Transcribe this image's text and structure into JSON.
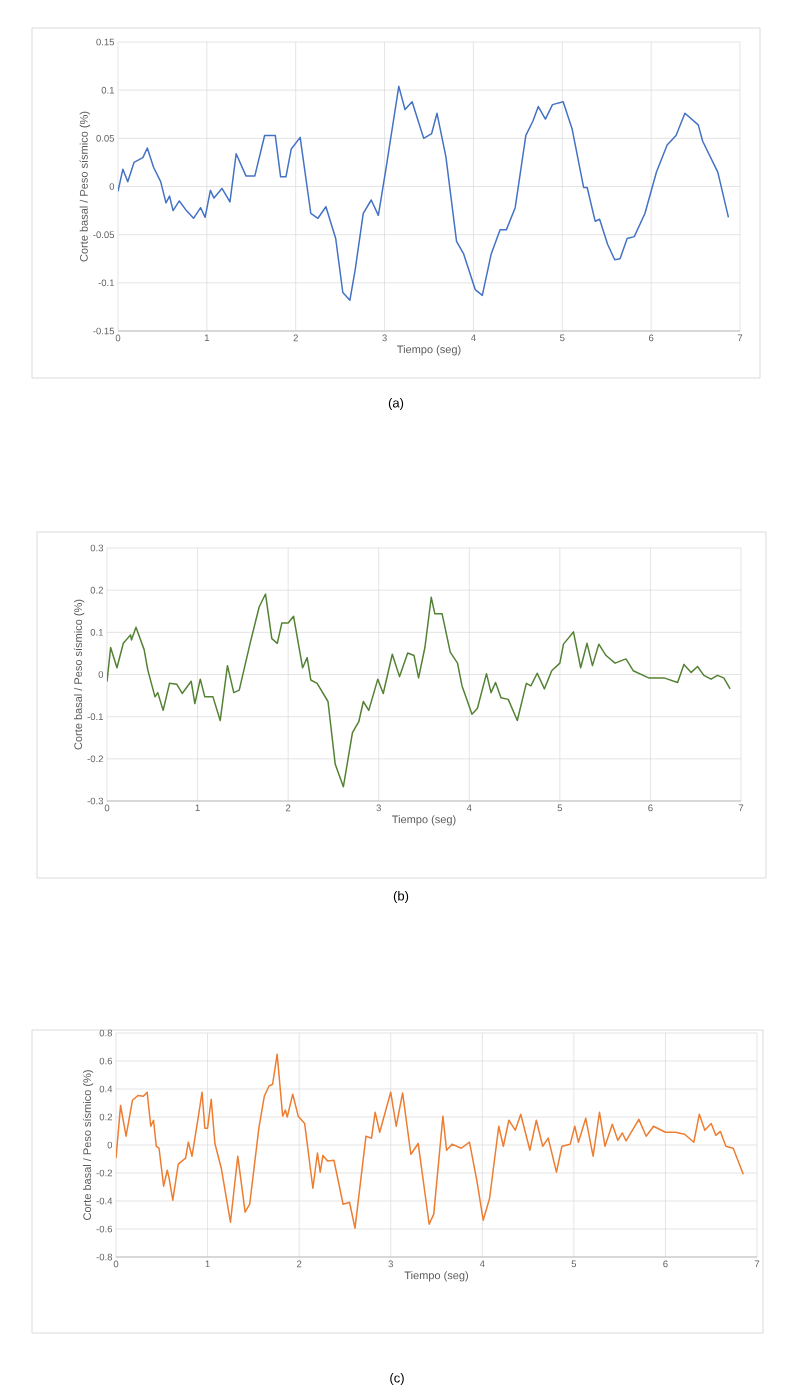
{
  "chart_data": [
    {
      "type": "line",
      "xlabel": "Tiempo (seg)",
      "ylabel": "Corte basal / Peso sísmico (%)",
      "annotations": [
        "(a)"
      ],
      "xlim": [
        0,
        7
      ],
      "ylim": [
        -0.15,
        0.15
      ],
      "xticks": [
        0,
        1,
        2,
        3,
        4,
        5,
        6,
        7
      ],
      "yticks": [
        -0.15,
        -0.1,
        -0.05,
        0,
        0.05,
        0.1,
        0.15
      ],
      "grid": true,
      "x": [
        0,
        0.055,
        0.11,
        0.18,
        0.28,
        0.33,
        0.4,
        0.48,
        0.54,
        0.58,
        0.62,
        0.69,
        0.77,
        0.85,
        0.93,
        0.98,
        1.04,
        1.08,
        1.17,
        1.26,
        1.33,
        1.44,
        1.54,
        1.65,
        1.77,
        1.83,
        1.89,
        1.95,
        2.05,
        2.17,
        2.25,
        2.34,
        2.45,
        2.53,
        2.61,
        2.67,
        2.76,
        2.85,
        2.93,
        3.02,
        3.16,
        3.23,
        3.31,
        3.44,
        3.53,
        3.59,
        3.69,
        3.81,
        3.89,
        4.02,
        4.1,
        4.2,
        4.3,
        4.37,
        4.47,
        4.59,
        4.67,
        4.73,
        4.81,
        4.89,
        5.01,
        5.11,
        5.24,
        5.28,
        5.37,
        5.42,
        5.51,
        5.59,
        5.65,
        5.73,
        5.81,
        5.93,
        6.06,
        6.18,
        6.28,
        6.38,
        6.53,
        6.58,
        6.75,
        6.87
      ],
      "series": [
        {
          "color": "#4472c4",
          "values": [
            -0.005,
            0.018,
            0.005,
            0.025,
            0.03,
            0.04,
            0.02,
            0.005,
            -0.017,
            -0.01,
            -0.025,
            -0.015,
            -0.025,
            -0.033,
            -0.022,
            -0.032,
            -0.004,
            -0.012,
            -0.002,
            -0.016,
            0.034,
            0.011,
            0.011,
            0.053,
            0.053,
            0.01,
            0.01,
            0.039,
            0.051,
            -0.028,
            -0.033,
            -0.021,
            -0.054,
            -0.11,
            -0.118,
            -0.086,
            -0.028,
            -0.014,
            -0.03,
            0.021,
            0.104,
            0.08,
            0.088,
            0.05,
            0.055,
            0.076,
            0.031,
            -0.057,
            -0.07,
            -0.107,
            -0.113,
            -0.07,
            -0.045,
            -0.045,
            -0.022,
            0.053,
            0.068,
            0.083,
            0.07,
            0.085,
            0.088,
            0.06,
            -0.001,
            -0.001,
            -0.036,
            -0.034,
            -0.06,
            -0.076,
            -0.075,
            -0.054,
            -0.052,
            -0.028,
            0.015,
            0.043,
            0.053,
            0.076,
            0.064,
            0.047,
            0.015,
            -0.032
          ]
        }
      ]
    },
    {
      "type": "line",
      "xlabel": "Tiempo (seg)",
      "ylabel": "Corte basal / Peso sísmico (%)",
      "annotations": [
        "(b)"
      ],
      "xlim": [
        0,
        7
      ],
      "ylim": [
        -0.3,
        0.3
      ],
      "xticks": [
        0,
        1,
        2,
        3,
        4,
        5,
        6,
        7
      ],
      "yticks": [
        -0.3,
        -0.2,
        -0.1,
        0,
        0.1,
        0.2,
        0.3
      ],
      "grid": true,
      "x": [
        0,
        0.04,
        0.11,
        0.18,
        0.26,
        0.27,
        0.32,
        0.41,
        0.45,
        0.53,
        0.56,
        0.62,
        0.69,
        0.77,
        0.83,
        0.93,
        0.97,
        1.03,
        1.08,
        1.17,
        1.25,
        1.33,
        1.4,
        1.46,
        1.58,
        1.68,
        1.75,
        1.82,
        1.88,
        1.93,
        2.0,
        2.06,
        2.16,
        2.21,
        2.25,
        2.32,
        2.44,
        2.52,
        2.61,
        2.71,
        2.78,
        2.83,
        2.89,
        2.99,
        3.05,
        3.15,
        3.23,
        3.32,
        3.39,
        3.44,
        3.51,
        3.58,
        3.62,
        3.7,
        3.79,
        3.87,
        3.92,
        4.03,
        4.09,
        4.19,
        4.24,
        4.29,
        4.35,
        4.43,
        4.53,
        4.63,
        4.68,
        4.75,
        4.83,
        4.91,
        5.0,
        5.04,
        5.15,
        5.23,
        5.3,
        5.36,
        5.43,
        5.51,
        5.61,
        5.73,
        5.81,
        5.98,
        6.15,
        6.3,
        6.37,
        6.45,
        6.52,
        6.59,
        6.67,
        6.74,
        6.81,
        6.88
      ],
      "series": [
        {
          "color": "#548235",
          "values": [
            -0.017,
            0.064,
            0.016,
            0.074,
            0.094,
            0.082,
            0.112,
            0.059,
            0.011,
            -0.053,
            -0.043,
            -0.085,
            -0.021,
            -0.023,
            -0.045,
            -0.016,
            -0.069,
            -0.011,
            -0.053,
            -0.053,
            -0.109,
            0.021,
            -0.043,
            -0.037,
            0.074,
            0.16,
            0.191,
            0.085,
            0.074,
            0.122,
            0.122,
            0.138,
            0.016,
            0.04,
            -0.013,
            -0.021,
            -0.064,
            -0.213,
            -0.266,
            -0.138,
            -0.112,
            -0.064,
            -0.085,
            -0.011,
            -0.045,
            0.048,
            -0.005,
            0.051,
            0.045,
            -0.008,
            0.064,
            0.183,
            0.144,
            0.144,
            0.053,
            0.027,
            -0.027,
            -0.094,
            -0.08,
            0.002,
            -0.043,
            -0.019,
            -0.055,
            -0.059,
            -0.109,
            -0.021,
            -0.027,
            0.003,
            -0.034,
            0.009,
            0.027,
            0.072,
            0.101,
            0.016,
            0.074,
            0.021,
            0.072,
            0.045,
            0.027,
            0.037,
            0.009,
            -0.008,
            -0.008,
            -0.019,
            0.024,
            0.005,
            0.019,
            -0.002,
            -0.011,
            -0.002,
            -0.008,
            -0.034
          ]
        }
      ]
    },
    {
      "type": "line",
      "xlabel": "Tiempo (seg)",
      "ylabel": "Corte basal / Peso sísmico (%)",
      "annotations": [
        "(c)"
      ],
      "xlim": [
        0,
        7
      ],
      "ylim": [
        -0.8,
        0.8
      ],
      "xticks": [
        0,
        1,
        2,
        3,
        4,
        5,
        6,
        7
      ],
      "yticks": [
        -0.8,
        -0.6,
        -0.4,
        -0.2,
        0,
        0.2,
        0.4,
        0.6,
        0.8
      ],
      "grid": true,
      "x": [
        0,
        0.05,
        0.11,
        0.18,
        0.24,
        0.3,
        0.34,
        0.38,
        0.41,
        0.44,
        0.47,
        0.52,
        0.56,
        0.58,
        0.62,
        0.68,
        0.76,
        0.79,
        0.83,
        0.9,
        0.94,
        0.97,
        1.0,
        1.04,
        1.08,
        1.15,
        1.25,
        1.33,
        1.41,
        1.46,
        1.56,
        1.62,
        1.67,
        1.71,
        1.76,
        1.82,
        1.85,
        1.87,
        1.93,
        1.99,
        2.06,
        2.15,
        2.2,
        2.23,
        2.26,
        2.31,
        2.38,
        2.48,
        2.55,
        2.61,
        2.73,
        2.79,
        2.83,
        2.88,
        3.0,
        3.06,
        3.13,
        3.22,
        3.3,
        3.42,
        3.47,
        3.57,
        3.61,
        3.67,
        3.77,
        3.86,
        3.94,
        4.01,
        4.08,
        4.18,
        4.23,
        4.29,
        4.36,
        4.42,
        4.52,
        4.59,
        4.66,
        4.72,
        4.81,
        4.87,
        4.96,
        5.01,
        5.05,
        5.13,
        5.21,
        5.28,
        5.34,
        5.42,
        5.48,
        5.53,
        5.57,
        5.71,
        5.79,
        5.87,
        6.0,
        6.11,
        6.21,
        6.31,
        6.37,
        6.43,
        6.5,
        6.55,
        6.6,
        6.66,
        6.74,
        6.85
      ],
      "series": [
        {
          "color": "#ed7d31",
          "values": [
            -0.094,
            0.283,
            0.063,
            0.32,
            0.354,
            0.349,
            0.377,
            0.134,
            0.177,
            -0.009,
            -0.023,
            -0.294,
            -0.18,
            -0.237,
            -0.394,
            -0.137,
            -0.094,
            0.02,
            -0.08,
            0.206,
            0.377,
            0.12,
            0.12,
            0.326,
            0.011,
            -0.166,
            -0.551,
            -0.08,
            -0.48,
            -0.423,
            0.12,
            0.349,
            0.42,
            0.434,
            0.649,
            0.206,
            0.249,
            0.2,
            0.363,
            0.206,
            0.154,
            -0.309,
            -0.057,
            -0.194,
            -0.074,
            -0.114,
            -0.109,
            -0.423,
            -0.409,
            -0.594,
            0.063,
            0.049,
            0.234,
            0.091,
            0.377,
            0.134,
            0.372,
            -0.066,
            0.011,
            -0.566,
            -0.494,
            0.206,
            -0.037,
            0.006,
            -0.023,
            0.02,
            -0.251,
            -0.537,
            -0.38,
            0.134,
            -0.009,
            0.177,
            0.106,
            0.22,
            -0.037,
            0.177,
            -0.009,
            0.049,
            -0.194,
            -0.009,
            0.006,
            0.134,
            0.02,
            0.191,
            -0.08,
            0.234,
            -0.009,
            0.149,
            0.034,
            0.086,
            0.029,
            0.183,
            0.063,
            0.134,
            0.091,
            0.091,
            0.077,
            0.02,
            0.22,
            0.106,
            0.154,
            0.069,
            0.097,
            -0.009,
            -0.023,
            -0.209
          ]
        }
      ]
    }
  ]
}
